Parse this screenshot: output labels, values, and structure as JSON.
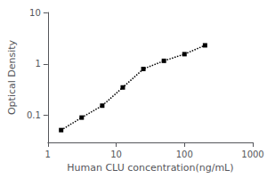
{
  "chart_data": {
    "type": "line",
    "xlabel": "Human CLU concentration(ng/mL)",
    "ylabel": "Optical Density",
    "x": [
      1.563,
      3.125,
      6.25,
      12.5,
      25,
      50,
      100,
      200
    ],
    "values": [
      0.052,
      0.091,
      0.155,
      0.35,
      0.8,
      1.15,
      1.55,
      2.3
    ],
    "xlim": [
      1,
      1000
    ],
    "ylim": [
      0.03,
      10
    ],
    "xticks": [
      1,
      10,
      100,
      1000
    ],
    "yticks": [
      0.1,
      1,
      10
    ],
    "log": true,
    "grid": false,
    "color": "#000000",
    "marker": "square",
    "line_style": "dotted"
  }
}
